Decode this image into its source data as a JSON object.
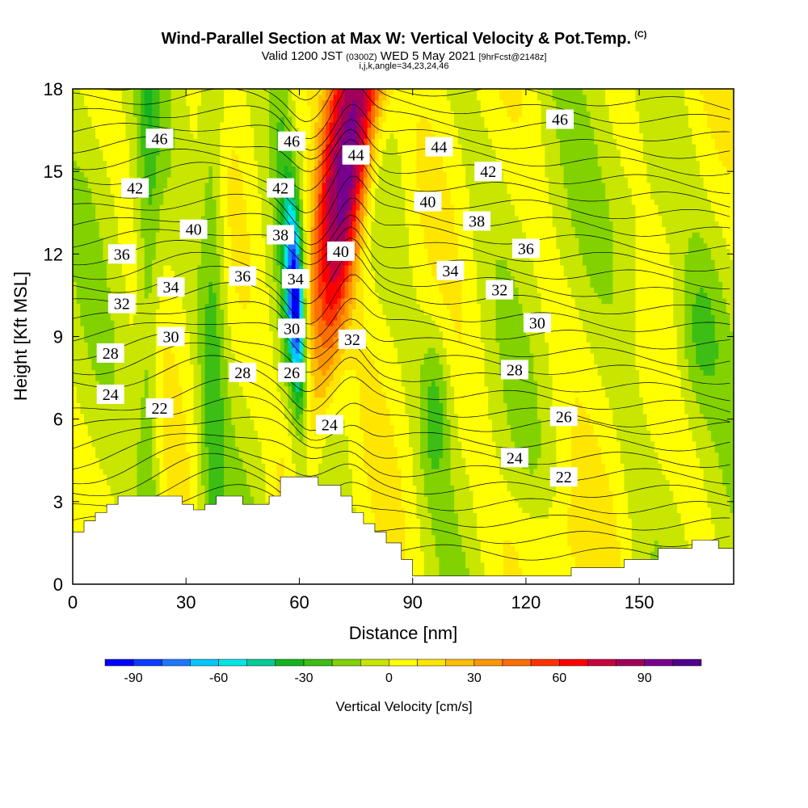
{
  "chart_data": {
    "type": "heatmap",
    "title": "Wind-Parallel Section at Max W: Vertical Velocity & Pot.Temp.",
    "title_mark": "(C)",
    "subtitle_main": "Valid 1200 JST",
    "subtitle_utc": "(0300Z)",
    "subtitle_date": "WED 5 May 2021",
    "subtitle_forecast": "[9hrFcst@2148z]",
    "params": "i,j,k,angle=34,23,24,46",
    "xlabel": "Distance [nm]",
    "ylabel": "Height [Kft MSL]",
    "xlim": [
      0,
      175
    ],
    "ylim": [
      0,
      18
    ],
    "xticks": [
      "0",
      "30",
      "60",
      "90",
      "120",
      "150"
    ],
    "xtick_values": [
      0,
      30,
      60,
      90,
      120,
      150
    ],
    "yticks": [
      "0",
      "3",
      "6",
      "9",
      "12",
      "15",
      "18"
    ],
    "ytick_values": [
      0,
      3,
      6,
      9,
      12,
      15,
      18
    ],
    "colorbar": {
      "label": "Vertical Velocity [cm/s]",
      "range": [
        -100,
        110
      ],
      "step": 10,
      "tick_labels": [
        "-90",
        "-60",
        "-30",
        "0",
        "30",
        "60",
        "90"
      ],
      "tick_values": [
        -90,
        -60,
        -30,
        0,
        30,
        60,
        90
      ],
      "colors": [
        "#0000ff",
        "#0a3cff",
        "#1e78ff",
        "#00c8ff",
        "#00e6e6",
        "#00cc96",
        "#14b41e",
        "#3cbe14",
        "#82d200",
        "#c8e600",
        "#ffff00",
        "#ffe600",
        "#ffbe00",
        "#ff9600",
        "#ff6e00",
        "#ff3200",
        "#ff0000",
        "#c8003c",
        "#a0005a",
        "#78008c",
        "#50008c"
      ]
    },
    "updraft_band": {
      "x_bottom": 59,
      "x_top": 76,
      "peak_cm_s": 100
    },
    "downdraft_band": {
      "x_bottom": 62,
      "x_top": 57,
      "min_cm_s": -90
    },
    "theta_contour_labels": [
      {
        "text": "46",
        "x": 23,
        "y": 16.2
      },
      {
        "text": "46",
        "x": 58,
        "y": 16.1
      },
      {
        "text": "44",
        "x": 75,
        "y": 15.6
      },
      {
        "text": "44",
        "x": 97,
        "y": 15.9
      },
      {
        "text": "46",
        "x": 129,
        "y": 16.9
      },
      {
        "text": "42",
        "x": 16.5,
        "y": 14.4
      },
      {
        "text": "42",
        "x": 55,
        "y": 14.4
      },
      {
        "text": "42",
        "x": 110,
        "y": 15.0
      },
      {
        "text": "40",
        "x": 32,
        "y": 12.9
      },
      {
        "text": "40",
        "x": 71,
        "y": 12.1
      },
      {
        "text": "40",
        "x": 94,
        "y": 13.9
      },
      {
        "text": "38",
        "x": 55,
        "y": 12.7
      },
      {
        "text": "38",
        "x": 107,
        "y": 13.2
      },
      {
        "text": "36",
        "x": 13,
        "y": 12.0
      },
      {
        "text": "36",
        "x": 45,
        "y": 11.2
      },
      {
        "text": "36",
        "x": 120,
        "y": 12.2
      },
      {
        "text": "34",
        "x": 26,
        "y": 10.8
      },
      {
        "text": "34",
        "x": 59,
        "y": 11.1
      },
      {
        "text": "34",
        "x": 100,
        "y": 11.4
      },
      {
        "text": "32",
        "x": 13,
        "y": 10.2
      },
      {
        "text": "32",
        "x": 74,
        "y": 8.9
      },
      {
        "text": "32",
        "x": 113,
        "y": 10.7
      },
      {
        "text": "30",
        "x": 26,
        "y": 9.0
      },
      {
        "text": "30",
        "x": 58,
        "y": 9.3
      },
      {
        "text": "30",
        "x": 123,
        "y": 9.5
      },
      {
        "text": "28",
        "x": 10,
        "y": 8.4
      },
      {
        "text": "28",
        "x": 45,
        "y": 7.7
      },
      {
        "text": "28",
        "x": 117,
        "y": 7.8
      },
      {
        "text": "26",
        "x": 58,
        "y": 7.7
      },
      {
        "text": "26",
        "x": 130,
        "y": 6.1
      },
      {
        "text": "24",
        "x": 10,
        "y": 6.9
      },
      {
        "text": "24",
        "x": 68,
        "y": 5.8
      },
      {
        "text": "24",
        "x": 117,
        "y": 4.6
      },
      {
        "text": "22",
        "x": 23,
        "y": 6.4
      },
      {
        "text": "22",
        "x": 130,
        "y": 3.9
      }
    ],
    "terrain": [
      [
        0,
        1.9
      ],
      [
        3,
        1.9
      ],
      [
        3,
        2.3
      ],
      [
        6,
        2.3
      ],
      [
        6,
        2.6
      ],
      [
        9,
        2.6
      ],
      [
        9,
        2.9
      ],
      [
        12,
        2.9
      ],
      [
        12,
        3.2
      ],
      [
        29,
        3.2
      ],
      [
        29,
        2.9
      ],
      [
        32,
        2.9
      ],
      [
        32,
        2.7
      ],
      [
        35,
        2.7
      ],
      [
        35,
        2.9
      ],
      [
        38,
        2.9
      ],
      [
        38,
        3.2
      ],
      [
        45,
        3.2
      ],
      [
        45,
        2.9
      ],
      [
        52,
        2.9
      ],
      [
        52,
        3.2
      ],
      [
        55,
        3.2
      ],
      [
        55,
        3.9
      ],
      [
        65,
        3.9
      ],
      [
        65,
        3.6
      ],
      [
        71,
        3.6
      ],
      [
        71,
        3.2
      ],
      [
        74,
        3.2
      ],
      [
        74,
        2.6
      ],
      [
        77,
        2.6
      ],
      [
        77,
        2.2
      ],
      [
        80,
        2.2
      ],
      [
        80,
        1.9
      ],
      [
        83,
        1.9
      ],
      [
        83,
        1.5
      ],
      [
        87,
        1.5
      ],
      [
        87,
        0.9
      ],
      [
        90,
        0.9
      ],
      [
        90,
        0.3
      ],
      [
        132,
        0.3
      ],
      [
        132,
        0.6
      ],
      [
        146,
        0.6
      ],
      [
        146,
        0.9
      ],
      [
        155,
        0.9
      ],
      [
        155,
        1.3
      ],
      [
        164,
        1.3
      ],
      [
        164,
        1.6
      ],
      [
        171,
        1.6
      ],
      [
        171,
        1.3
      ],
      [
        175,
        1.3
      ]
    ]
  }
}
